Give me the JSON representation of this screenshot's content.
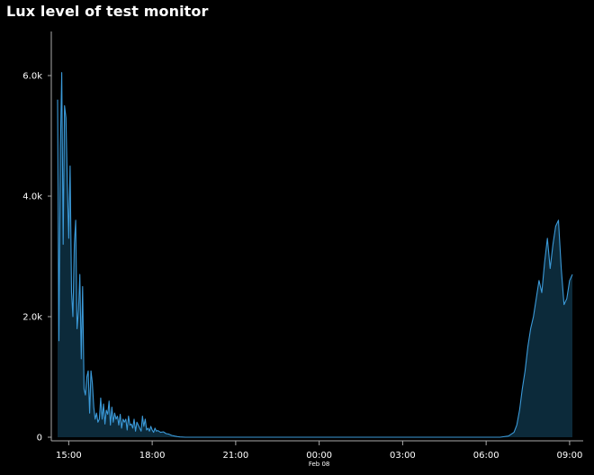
{
  "chart_data": {
    "type": "area",
    "title": "Lux level of test monitor",
    "xlabel": "",
    "ylabel": "",
    "ylim": [
      0,
      6300
    ],
    "y_ticks": [
      {
        "value": 0,
        "label": "0"
      },
      {
        "value": 2000,
        "label": "2.0k"
      },
      {
        "value": 4000,
        "label": "4.0k"
      },
      {
        "value": 6000,
        "label": "6.0k"
      }
    ],
    "x_range_hours": [
      14.5,
      33.3
    ],
    "x_ticks": [
      {
        "value": 15,
        "label": "15:00"
      },
      {
        "value": 18,
        "label": "18:00"
      },
      {
        "value": 21,
        "label": "21:00"
      },
      {
        "value": 24,
        "label": "00:00",
        "sublabel": "Feb 08"
      },
      {
        "value": 27,
        "label": "03:00"
      },
      {
        "value": 30,
        "label": "06:00"
      },
      {
        "value": 33,
        "label": "09:00"
      }
    ],
    "line_color": "#3b9ad9",
    "fill_color": "#0c2a3a",
    "series": [
      {
        "x": [
          14.6,
          14.65,
          14.7,
          14.75,
          14.8,
          14.85,
          14.9,
          14.95,
          15.0,
          15.05,
          15.1,
          15.15,
          15.2,
          15.25,
          15.3,
          15.35,
          15.4,
          15.45,
          15.5,
          15.55,
          15.6,
          15.65,
          15.7,
          15.75,
          15.8,
          15.85,
          15.9,
          15.95,
          16.0,
          16.05,
          16.1,
          16.15,
          16.2,
          16.25,
          16.3,
          16.35,
          16.4,
          16.45,
          16.5,
          16.55,
          16.6,
          16.65,
          16.7,
          16.75,
          16.8,
          16.85,
          16.9,
          16.95,
          17.0,
          17.05,
          17.1,
          17.15,
          17.2,
          17.25,
          17.3,
          17.35,
          17.4,
          17.45,
          17.5,
          17.55,
          17.6,
          17.65,
          17.7,
          17.75,
          17.8,
          17.85,
          17.9,
          17.95,
          18.0,
          18.05,
          18.1,
          18.15,
          18.2,
          18.3,
          18.4,
          18.5,
          18.6,
          18.7,
          18.8,
          18.9,
          19.0,
          19.2,
          19.5,
          20.0,
          21.0,
          22.0,
          23.0,
          24.0,
          25.0,
          26.0,
          27.0,
          28.0,
          29.0,
          30.0,
          30.5,
          30.8,
          31.0,
          31.1,
          31.2,
          31.3,
          31.4,
          31.5,
          31.6,
          31.7,
          31.8,
          31.9,
          32.0,
          32.1,
          32.2,
          32.3,
          32.4,
          32.5,
          32.6,
          32.7,
          32.8,
          32.9,
          33.0,
          33.1
        ],
        "values": [
          5600,
          1600,
          4800,
          6050,
          3200,
          5500,
          5300,
          4200,
          3300,
          4500,
          2400,
          2000,
          3200,
          3600,
          1800,
          2100,
          2700,
          1300,
          2500,
          800,
          700,
          1000,
          1100,
          400,
          1100,
          900,
          500,
          300,
          400,
          250,
          300,
          650,
          300,
          550,
          220,
          450,
          380,
          600,
          200,
          500,
          250,
          400,
          300,
          350,
          200,
          380,
          150,
          300,
          250,
          300,
          120,
          350,
          200,
          220,
          150,
          300,
          100,
          250,
          200,
          150,
          100,
          350,
          180,
          300,
          120,
          150,
          100,
          180,
          120,
          80,
          150,
          100,
          110,
          80,
          90,
          60,
          50,
          30,
          20,
          10,
          5,
          0,
          0,
          0,
          0,
          0,
          0,
          0,
          0,
          0,
          0,
          0,
          0,
          0,
          0,
          20,
          80,
          200,
          450,
          800,
          1100,
          1500,
          1800,
          2000,
          2300,
          2600,
          2400,
          2900,
          3300,
          2800,
          3200,
          3500,
          3600,
          2800,
          2200,
          2300,
          2600,
          2700
        ]
      }
    ]
  }
}
